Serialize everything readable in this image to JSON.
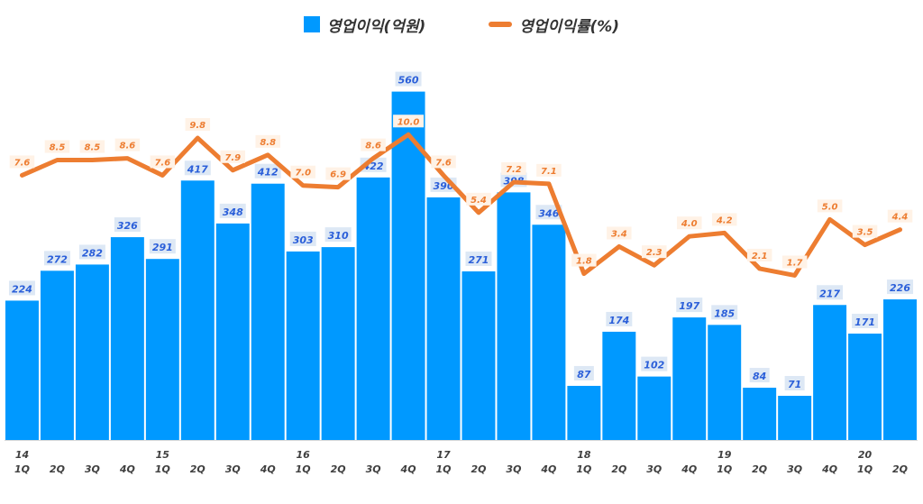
{
  "legend": {
    "bar_label": "영업이익(억원)",
    "line_label": "영업이익률(%)"
  },
  "colors": {
    "bar": "#0099ff",
    "line": "#ed7d31",
    "bar_label_text": "#2b5fd9",
    "line_label_text": "#ed7d31",
    "label_box": "#dde8f5"
  },
  "chart_data": {
    "type": "bar",
    "categories": [
      "14 1Q",
      "2Q",
      "3Q",
      "4Q",
      "15 1Q",
      "2Q",
      "3Q",
      "4Q",
      "16 1Q",
      "2Q",
      "3Q",
      "4Q",
      "17 1Q",
      "2Q",
      "3Q",
      "4Q",
      "18 1Q",
      "2Q",
      "3Q",
      "4Q",
      "19 1Q",
      "2Q",
      "3Q",
      "4Q",
      "20 1Q",
      "2Q"
    ],
    "tick_top": [
      "14",
      "",
      "",
      "",
      "15",
      "",
      "",
      "",
      "16",
      "",
      "",
      "",
      "17",
      "",
      "",
      "",
      "18",
      "",
      "",
      "",
      "19",
      "",
      "",
      "",
      "20",
      ""
    ],
    "tick_bottom": [
      "1Q",
      "2Q",
      "3Q",
      "4Q",
      "1Q",
      "2Q",
      "3Q",
      "4Q",
      "1Q",
      "2Q",
      "3Q",
      "4Q",
      "1Q",
      "2Q",
      "3Q",
      "4Q",
      "1Q",
      "2Q",
      "3Q",
      "4Q",
      "1Q",
      "2Q",
      "3Q",
      "4Q",
      "1Q",
      "2Q"
    ],
    "series": [
      {
        "name": "영업이익(억원)",
        "type": "bar",
        "values": [
          224,
          272,
          282,
          326,
          291,
          417,
          348,
          412,
          303,
          310,
          422,
          560,
          390,
          271,
          398,
          346,
          87,
          174,
          102,
          197,
          185,
          84,
          71,
          217,
          171,
          226
        ],
        "labels": [
          "224",
          "272",
          "282",
          "326",
          "291",
          "417",
          "348",
          "412",
          "303",
          "310",
          "422",
          "560",
          "390",
          "271",
          "398",
          "346",
          "87",
          "174",
          "102",
          "197",
          "185",
          "84",
          "71",
          "217",
          "171",
          "226"
        ]
      },
      {
        "name": "영업이익률(%)",
        "type": "line",
        "values": [
          7.6,
          8.5,
          8.5,
          8.6,
          7.6,
          9.8,
          7.9,
          8.8,
          7.0,
          6.9,
          8.6,
          10.0,
          7.6,
          5.4,
          7.2,
          7.1,
          1.8,
          3.4,
          2.3,
          4.0,
          4.2,
          2.1,
          1.7,
          5.0,
          3.5,
          4.4
        ],
        "labels": [
          "7.6",
          "8.5",
          "8.5",
          "8.6",
          "7.6",
          "9.8",
          "7.9",
          "8.8",
          "7.0",
          "6.9",
          "8.6",
          "10.0",
          "7.6",
          "5.4",
          "7.2",
          "7.1",
          "1.8",
          "3.4",
          "2.3",
          "4.0",
          "4.2",
          "2.1",
          "1.7",
          "5.0",
          "3.5",
          "4.4"
        ]
      }
    ],
    "ylim_bar": [
      0,
      600
    ],
    "ylim_line": [
      -8,
      14
    ],
    "title": "",
    "xlabel": "",
    "ylabel": "",
    "grid": false,
    "legend_position": "top-center"
  }
}
